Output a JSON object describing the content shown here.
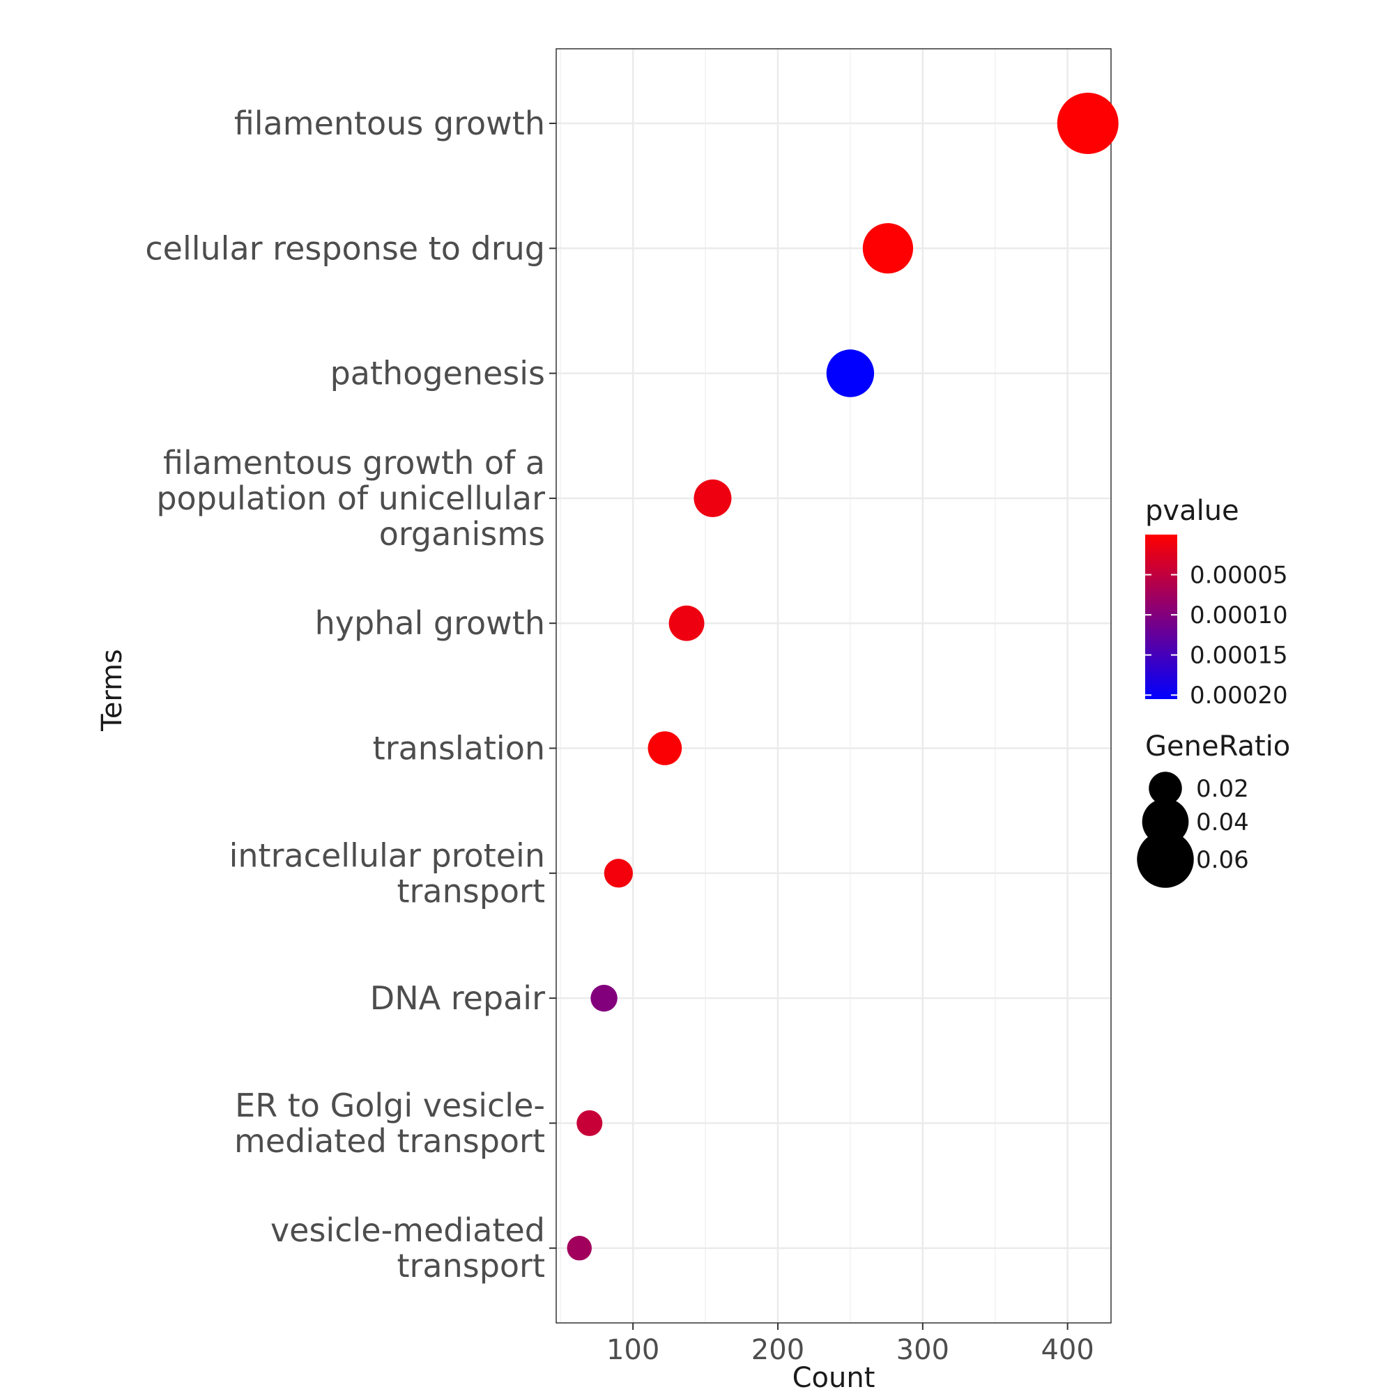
{
  "chart_data": {
    "type": "scatter",
    "xlabel": "Count",
    "ylabel": "Terms",
    "xlim": [
      47,
      430
    ],
    "xticks": [
      100,
      200,
      300,
      400
    ],
    "grid": true,
    "legend_position": "right",
    "points": [
      {
        "term": [
          "filamentous growth"
        ],
        "count": 414,
        "pvalue": 5e-07,
        "gene_ratio": 0.07
      },
      {
        "term": [
          "cellular response to drug"
        ],
        "count": 276,
        "pvalue": 1e-06,
        "gene_ratio": 0.047
      },
      {
        "term": [
          "pathogenesis"
        ],
        "count": 250,
        "pvalue": 0.000204,
        "gene_ratio": 0.042
      },
      {
        "term": [
          "filamentous growth of a",
          "population of unicellular",
          "organisms"
        ],
        "count": 155,
        "pvalue": 1.4e-05,
        "gene_ratio": 0.026
      },
      {
        "term": [
          "hyphal growth"
        ],
        "count": 137,
        "pvalue": 1.4e-05,
        "gene_ratio": 0.023
      },
      {
        "term": [
          "translation"
        ],
        "count": 122,
        "pvalue": 4e-06,
        "gene_ratio": 0.021
      },
      {
        "term": [
          "intracellular protein",
          "transport"
        ],
        "count": 90,
        "pvalue": 1e-05,
        "gene_ratio": 0.015
      },
      {
        "term": [
          "DNA repair"
        ],
        "count": 80,
        "pvalue": 0.0001,
        "gene_ratio": 0.013
      },
      {
        "term": [
          "ER to Golgi vesicle-",
          "mediated transport"
        ],
        "count": 70,
        "pvalue": 4.5e-05,
        "gene_ratio": 0.012
      },
      {
        "term": [
          "vesicle-mediated",
          "transport"
        ],
        "count": 63,
        "pvalue": 7.5e-05,
        "gene_ratio": 0.011
      }
    ],
    "legend_color": {
      "title": "pvalue",
      "low_color": "#ff0000",
      "high_color": "#0000ff",
      "range": [
        0,
        0.000205
      ],
      "ticks": [
        5e-05,
        0.0001,
        0.00015,
        0.0002
      ],
      "tick_labels": [
        "0.00005",
        "0.00010",
        "0.00015",
        "0.00020"
      ]
    },
    "legend_size": {
      "title": "GeneRatio",
      "values": [
        0.02,
        0.04,
        0.06
      ],
      "labels": [
        "0.02",
        "0.04",
        "0.06"
      ]
    }
  }
}
